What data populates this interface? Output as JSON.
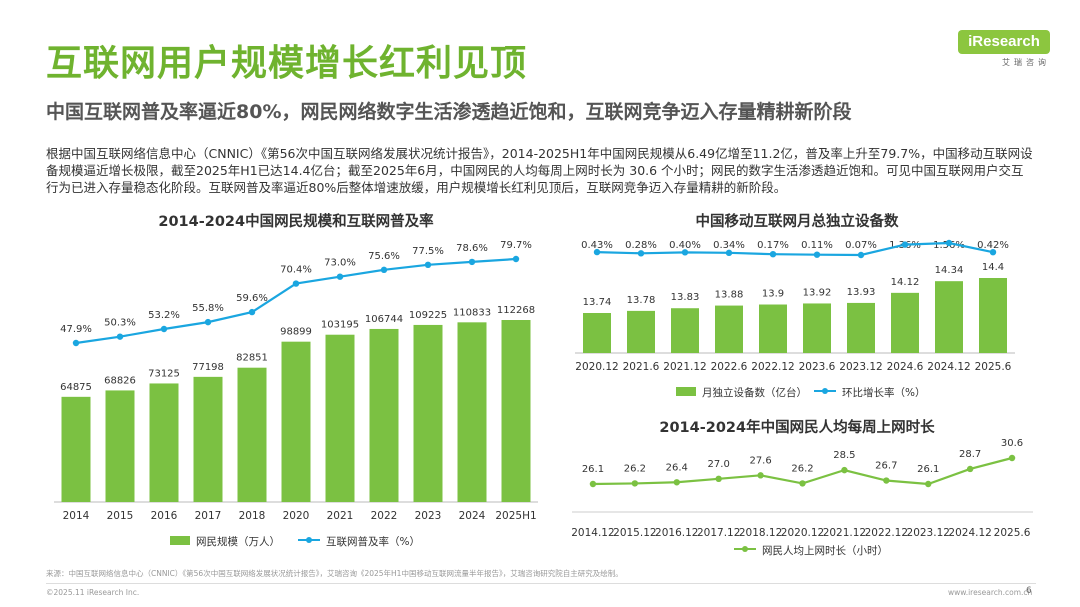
{
  "header": {
    "title": "互联网用户规模增长红利见顶",
    "subtitle": "中国互联网普及率逼近80%，网民网络数字生活渗透趋近饱和，互联网竞争迈入存量精耕新阶段",
    "body": "根据中国互联网络信息中心（CNNIC）《第56次中国互联网络发展状况统计报告》，2014-2025H1年中国网民规模从6.49亿增至11.2亿，普及率上升至79.7%，中国移动互联网设备规模逼近增长极限，截至2025年H1已达14.4亿台；截至2025年6月，中国网民的人均每周上网时长为 30.6 个小时；网民的数字生活渗透趋近饱和。可见中国互联网用户交互行为已进入存量稳态化阶段。互联网普及率逼近80%后整体增速放缓，用户规模增长红利见顶后，互联网竞争迈入存量精耕的新阶段。"
  },
  "logo": {
    "brand": "iResearch",
    "sub": "艾瑞咨询"
  },
  "colors": {
    "bar": "#7bc142",
    "line": "#1aa6e0",
    "title": "#6fb32f"
  },
  "chart_data": [
    {
      "type": "bar",
      "title": "2014-2024中国网民规模和互联网普及率",
      "categories": [
        "2014",
        "2015",
        "2016",
        "2017",
        "2018",
        "2020",
        "2021",
        "2022",
        "2023",
        "2024",
        "2025H1"
      ],
      "series": [
        {
          "name": "网民规模（万人）",
          "type": "bar",
          "values": [
            64875,
            68826,
            73125,
            77198,
            82851,
            98899,
            103195,
            106744,
            109225,
            110833,
            112268
          ]
        },
        {
          "name": "互联网普及率（%）",
          "type": "line",
          "values": [
            47.9,
            50.3,
            53.2,
            55.8,
            59.6,
            70.4,
            73.0,
            75.6,
            77.5,
            78.6,
            79.7
          ],
          "labels": [
            "47.9%",
            "50.3%",
            "53.2%",
            "55.8%",
            "59.6%",
            "70.4%",
            "73.0%",
            "75.6%",
            "77.5%",
            "78.6%",
            "79.7%"
          ]
        }
      ],
      "legend": "bottom"
    },
    {
      "type": "bar",
      "title": "中国移动互联网月总独立设备数",
      "categories": [
        "2020.12",
        "2021.6",
        "2021.12",
        "2022.6",
        "2022.12",
        "2023.6",
        "2023.12",
        "2024.6",
        "2024.12",
        "2025.6"
      ],
      "series": [
        {
          "name": "月独立设备数（亿台）",
          "type": "bar",
          "values": [
            13.74,
            13.78,
            13.83,
            13.88,
            13.9,
            13.92,
            13.93,
            14.12,
            14.34,
            14.4
          ],
          "labels": [
            "13.74",
            "13.78",
            "13.83",
            "13.88",
            "13.9",
            "13.92",
            "13.93",
            "14.12",
            "14.34",
            "14.4"
          ]
        },
        {
          "name": "环比增长率（%）",
          "type": "line",
          "values": [
            0.43,
            0.28,
            0.4,
            0.34,
            0.17,
            0.11,
            0.07,
            1.36,
            1.56,
            0.42
          ],
          "labels": [
            "0.43%",
            "0.28%",
            "0.40%",
            "0.34%",
            "0.17%",
            "0.11%",
            "0.07%",
            "1.36%",
            "1.56%",
            "0.42%"
          ]
        }
      ],
      "legend": "bottom"
    },
    {
      "type": "line",
      "title": "2014-2024年中国网民人均每周上网时长",
      "categories": [
        "2014.12",
        "2015.12",
        "2016.12",
        "2017.12",
        "2018.12",
        "2020.12",
        "2021.12",
        "2022.12",
        "2023.12",
        "2024.12",
        "2025.6"
      ],
      "series": [
        {
          "name": "网民人均上网时长（小时）",
          "type": "line",
          "values": [
            26.1,
            26.2,
            26.4,
            27.0,
            27.6,
            26.2,
            28.5,
            26.7,
            26.1,
            28.7,
            30.6
          ],
          "labels": [
            "26.1",
            "26.2",
            "26.4",
            "27.0",
            "27.6",
            "26.2",
            "28.5",
            "26.7",
            "26.1",
            "28.7",
            "30.6"
          ]
        }
      ],
      "legend": "bottom"
    }
  ],
  "footer": {
    "source": "来源：中国互联网络信息中心（CNNIC）《第56次中国互联网络发展状况统计报告》，艾瑞咨询《2025年H1中国移动互联网流量半年报告》，艾瑞咨询研究院自主研究及绘制。",
    "copyright": "©2025.11 iResearch Inc.",
    "site": "www.iresearch.com.cn",
    "page": "6"
  }
}
